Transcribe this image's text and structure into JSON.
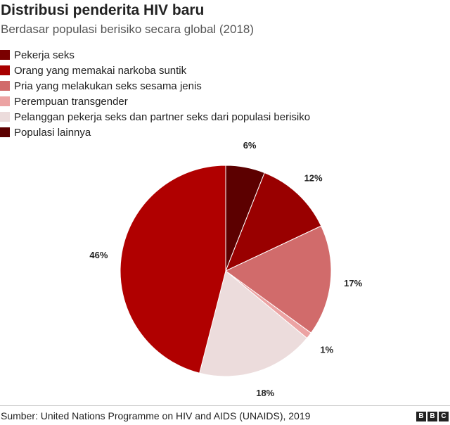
{
  "title": "Distribusi penderita HIV baru",
  "subtitle": "Berdasar populasi berisiko secara global (2018)",
  "source": "Sumber: United Nations Programme on HIV and AIDS (UNAIDS), 2019",
  "logo": {
    "letters": [
      "B",
      "B",
      "C"
    ]
  },
  "chart_data": {
    "type": "pie",
    "title": "Distribusi penderita HIV baru",
    "subtitle": "Berdasar populasi berisiko secara global (2018)",
    "legend_position": "top-left",
    "start_angle_deg": 0,
    "direction": "clockwise",
    "slices": [
      {
        "label": "Populasi lainnya",
        "value": 6,
        "display": "6%",
        "color": "#5c0000"
      },
      {
        "label": "Orang yang memakai narkoba suntik",
        "value": 12,
        "display": "12%",
        "color": "#990000"
      },
      {
        "label": "Pria yang melakukan seks sesama jenis",
        "value": 17,
        "display": "17%",
        "color": "#d16b6b"
      },
      {
        "label": "Perempuan transgender",
        "value": 1,
        "display": "1%",
        "color": "#eca3a3"
      },
      {
        "label": "Pelanggan pekerja seks dan partner seks dari populasi berisiko",
        "value": 18,
        "display": "18%",
        "color": "#ecdcdc"
      },
      {
        "label": "Pekerja seks",
        "value": 46,
        "display": "46%",
        "color": "#b00000"
      }
    ],
    "legend": [
      {
        "label": "Pekerja seks",
        "color": "#7a0000"
      },
      {
        "label": "Orang yang memakai narkoba suntik",
        "color": "#a80000"
      },
      {
        "label": "Pria yang melakukan seks sesama jenis",
        "color": "#d16b6b"
      },
      {
        "label": "Perempuan transgender",
        "color": "#eca3a3"
      },
      {
        "label": "Pelanggan pekerja seks dan partner seks dari populasi berisiko",
        "color": "#ecdcdc"
      },
      {
        "label": "Populasi lainnya",
        "color": "#5c0000"
      }
    ]
  }
}
